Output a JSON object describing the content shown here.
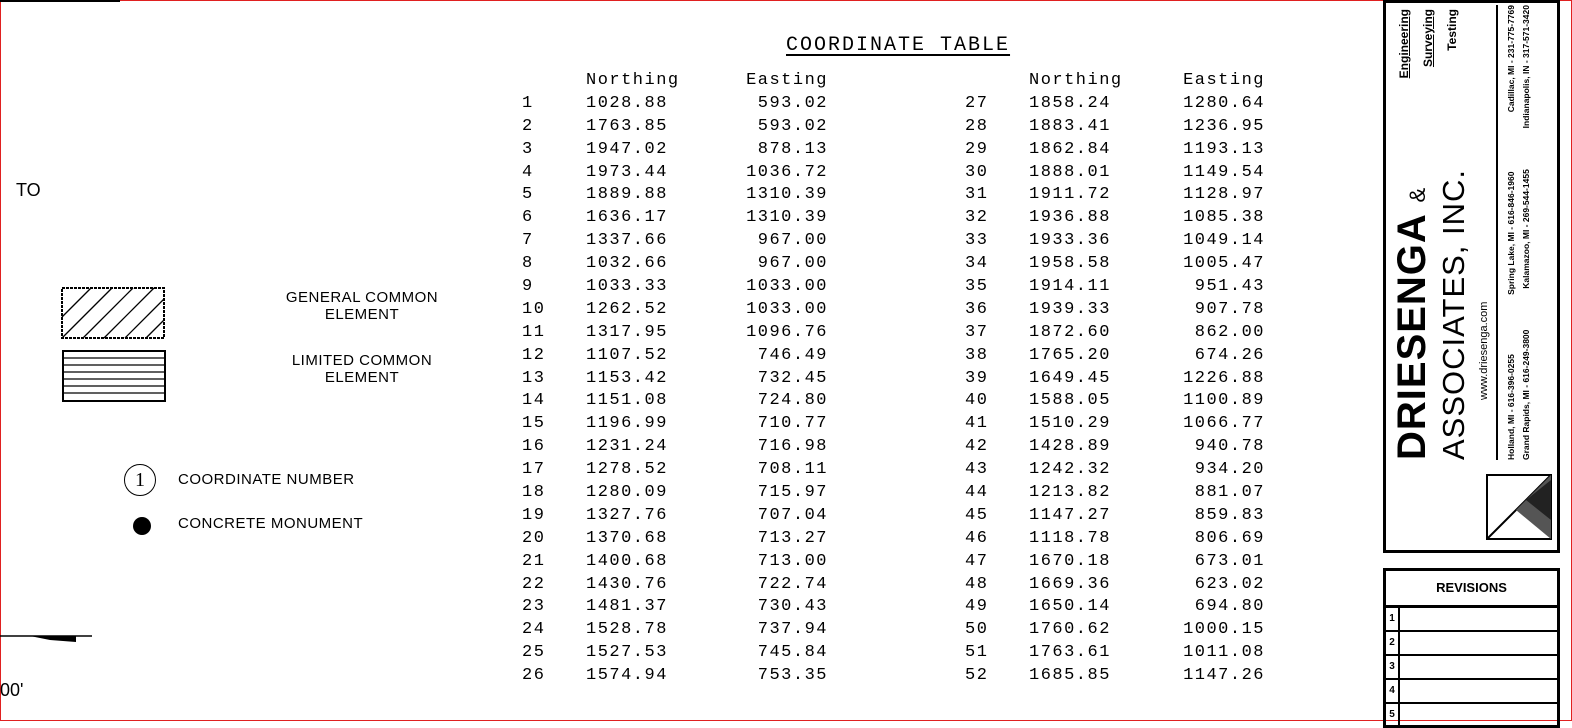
{
  "left": {
    "to_label": "TO",
    "scale_label": "00'"
  },
  "legend": {
    "general_common_element": [
      "GENERAL COMMON",
      "ELEMENT"
    ],
    "limited_common_element": [
      "LIMITED COMMON",
      "ELEMENT"
    ],
    "coordinate_number_symbol": "1",
    "coordinate_number": "COORDINATE NUMBER",
    "concrete_monument": "CONCRETE MONUMENT"
  },
  "table": {
    "title": "COORDINATE TABLE",
    "headers": [
      "Northing",
      "Easting"
    ],
    "rows": [
      [
        "1",
        "1028.88",
        "593.02"
      ],
      [
        "2",
        "1763.85",
        "593.02"
      ],
      [
        "3",
        "1947.02",
        "878.13"
      ],
      [
        "4",
        "1973.44",
        "1036.72"
      ],
      [
        "5",
        "1889.88",
        "1310.39"
      ],
      [
        "6",
        "1636.17",
        "1310.39"
      ],
      [
        "7",
        "1337.66",
        "967.00"
      ],
      [
        "8",
        "1032.66",
        "967.00"
      ],
      [
        "9",
        "1033.33",
        "1033.00"
      ],
      [
        "10",
        "1262.52",
        "1033.00"
      ],
      [
        "11",
        "1317.95",
        "1096.76"
      ],
      [
        "12",
        "1107.52",
        "746.49"
      ],
      [
        "13",
        "1153.42",
        "732.45"
      ],
      [
        "14",
        "1151.08",
        "724.80"
      ],
      [
        "15",
        "1196.99",
        "710.77"
      ],
      [
        "16",
        "1231.24",
        "716.98"
      ],
      [
        "17",
        "1278.52",
        "708.11"
      ],
      [
        "18",
        "1280.09",
        "715.97"
      ],
      [
        "19",
        "1327.76",
        "707.04"
      ],
      [
        "20",
        "1370.68",
        "713.27"
      ],
      [
        "21",
        "1400.68",
        "713.00"
      ],
      [
        "22",
        "1430.76",
        "722.74"
      ],
      [
        "23",
        "1481.37",
        "730.43"
      ],
      [
        "24",
        "1528.78",
        "737.94"
      ],
      [
        "25",
        "1527.53",
        "745.84"
      ],
      [
        "26",
        "1574.94",
        "753.35"
      ],
      [
        "27",
        "1858.24",
        "1280.64"
      ],
      [
        "28",
        "1883.41",
        "1236.95"
      ],
      [
        "29",
        "1862.84",
        "1193.13"
      ],
      [
        "30",
        "1888.01",
        "1149.54"
      ],
      [
        "31",
        "1911.72",
        "1128.97"
      ],
      [
        "32",
        "1936.88",
        "1085.38"
      ],
      [
        "33",
        "1933.36",
        "1049.14"
      ],
      [
        "34",
        "1958.58",
        "1005.47"
      ],
      [
        "35",
        "1914.11",
        "951.43"
      ],
      [
        "36",
        "1939.33",
        "907.78"
      ],
      [
        "37",
        "1872.60",
        "862.00"
      ],
      [
        "38",
        "1765.20",
        "674.26"
      ],
      [
        "39",
        "1649.45",
        "1226.88"
      ],
      [
        "40",
        "1588.05",
        "1100.89"
      ],
      [
        "41",
        "1510.29",
        "1066.77"
      ],
      [
        "42",
        "1428.89",
        "940.78"
      ],
      [
        "43",
        "1242.32",
        "934.20"
      ],
      [
        "44",
        "1213.82",
        "881.07"
      ],
      [
        "45",
        "1147.27",
        "859.83"
      ],
      [
        "46",
        "1118.78",
        "806.69"
      ],
      [
        "47",
        "1670.18",
        "673.01"
      ],
      [
        "48",
        "1669.36",
        "623.02"
      ],
      [
        "49",
        "1650.14",
        "694.80"
      ],
      [
        "50",
        "1760.62",
        "1000.15"
      ],
      [
        "51",
        "1763.61",
        "1011.08"
      ],
      [
        "52",
        "1685.85",
        "1147.26"
      ]
    ]
  },
  "title_block": {
    "company_line1": "DRIESENGA",
    "ampersand": "&",
    "company_line2": "ASSOCIATES, INC.",
    "website": "www.driesenga.com",
    "services": [
      "Engineering",
      "Surveying",
      "Testing"
    ],
    "offices_row1": [
      "Holland, MI - 616-396-0255",
      "Spring Lake, MI - 616-846-1960",
      "Cadillac, MI - 231-775-7769"
    ],
    "offices_row2": [
      "Grand Rapids, MI - 616-249-3800",
      "Kalamazoo, MI - 269-544-1455",
      "Indianapolis, IN - 317-571-3420"
    ]
  },
  "revisions": {
    "title": "REVISIONS",
    "rows": [
      "1",
      "2",
      "3",
      "4",
      "5"
    ]
  }
}
